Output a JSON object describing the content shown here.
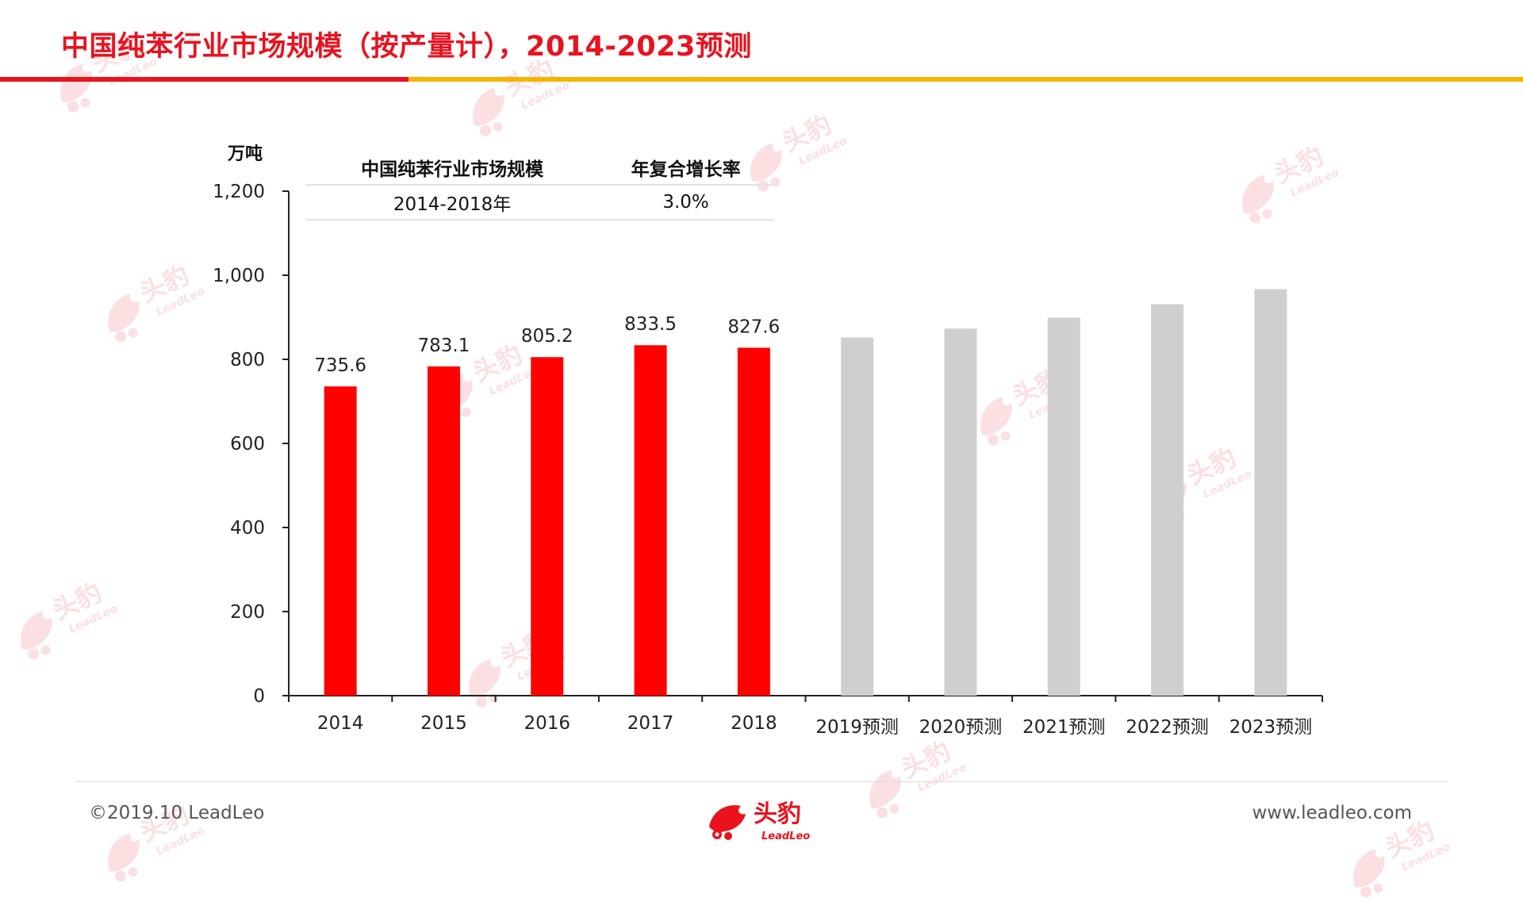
{
  "page": {
    "title": "中国纯苯行业市场规模（按产量计），2014-2023预测",
    "copyright": "©2019.10 LeadLeo",
    "website": "www.leadleo.com",
    "logo_text": "头豹",
    "logo_subtext": "LeadLeo",
    "watermark_text": "头豹",
    "watermark_subtext": "LeadLeo"
  },
  "cagr_table": {
    "header": [
      "中国纯苯行业市场规模",
      "年复合增长率"
    ],
    "rows": [
      [
        "2014-2018年",
        "3.0%"
      ]
    ]
  },
  "chart_data": {
    "type": "bar",
    "unit_label": "万吨",
    "categories": [
      "2014",
      "2015",
      "2016",
      "2017",
      "2018",
      "2019预测",
      "2020预测",
      "2021预测",
      "2022预测",
      "2023预测"
    ],
    "values": [
      735.6,
      783.1,
      805.2,
      833.5,
      827.6,
      852,
      873,
      899,
      931,
      967
    ],
    "data_labels": [
      "735.6",
      "783.1",
      "805.2",
      "833.5",
      "827.6",
      "",
      "",
      "",
      "",
      ""
    ],
    "forecast": [
      false,
      false,
      false,
      false,
      false,
      true,
      true,
      true,
      true,
      true
    ],
    "ylim": [
      0,
      1200
    ],
    "yticks": [
      0,
      200,
      400,
      600,
      800,
      1000,
      1200
    ],
    "ytick_labels": [
      "0",
      "200",
      "400",
      "600",
      "800",
      "1,000",
      "1,200"
    ],
    "colors": {
      "actual": "#ff0000",
      "forecast": "#d0cecf",
      "axis": "#222222"
    }
  }
}
